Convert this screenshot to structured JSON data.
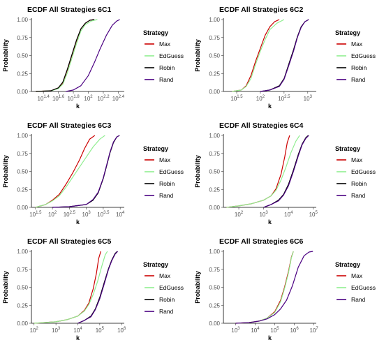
{
  "legend_title": "Strategy",
  "colors": {
    "Max": "#cc0000",
    "EdGuess": "#90ee90",
    "Robin": "#000000",
    "Rand": "#4b0082"
  },
  "chart_data": [
    {
      "type": "line",
      "title": "ECDF All Strategies 6C1",
      "xlabel": "k",
      "ylabel": "Probability",
      "x_scale": "log10",
      "xlim_log10": [
        1.24,
        2.48
      ],
      "ylim": [
        0,
        1
      ],
      "x_ticks": [
        {
          "v": 1.4,
          "label": "10",
          "exp": "1.4"
        },
        {
          "v": 1.6,
          "label": "10",
          "exp": "1.6"
        },
        {
          "v": 1.8,
          "label": "10",
          "exp": "1.8"
        },
        {
          "v": 2.0,
          "label": "10",
          "exp": "2"
        },
        {
          "v": 2.2,
          "label": "10",
          "exp": "2.2"
        },
        {
          "v": 2.4,
          "label": "10",
          "exp": "2.4"
        }
      ],
      "y_ticks": [
        "0.00",
        "0.25",
        "0.50",
        "0.75",
        "1.00"
      ],
      "legend": [
        "Max",
        "EdGuess",
        "Robin",
        "Rand"
      ],
      "series": [
        {
          "name": "Max",
          "x_log10": [
            1.3,
            1.5,
            1.6,
            1.66,
            1.72,
            1.78,
            1.84,
            1.9,
            1.96,
            2.02,
            2.08
          ],
          "y": [
            0,
            0.01,
            0.05,
            0.12,
            0.3,
            0.5,
            0.7,
            0.87,
            0.95,
            0.99,
            1.0
          ]
        },
        {
          "name": "EdGuess",
          "x_log10": [
            1.3,
            1.5,
            1.6,
            1.66,
            1.72,
            1.78,
            1.84,
            1.9,
            1.96,
            2.04,
            2.12
          ],
          "y": [
            0,
            0.01,
            0.04,
            0.1,
            0.26,
            0.46,
            0.66,
            0.84,
            0.93,
            0.98,
            1.0
          ]
        },
        {
          "name": "Robin",
          "x_log10": [
            1.3,
            1.5,
            1.6,
            1.66,
            1.72,
            1.78,
            1.84,
            1.9,
            1.96,
            2.02,
            2.08
          ],
          "y": [
            0,
            0.01,
            0.05,
            0.13,
            0.31,
            0.51,
            0.71,
            0.87,
            0.95,
            0.99,
            1.0
          ]
        },
        {
          "name": "Rand",
          "x_log10": [
            1.7,
            1.8,
            1.9,
            2.0,
            2.08,
            2.16,
            2.24,
            2.32,
            2.38,
            2.42
          ],
          "y": [
            0,
            0.02,
            0.08,
            0.22,
            0.4,
            0.6,
            0.78,
            0.92,
            0.98,
            1.0
          ]
        }
      ]
    },
    {
      "type": "line",
      "title": "ECDF All Strategies 6C2",
      "xlabel": "k",
      "ylabel": "Probability",
      "x_scale": "log10",
      "xlim_log10": [
        1.22,
        3.18
      ],
      "ylim": [
        0,
        1
      ],
      "x_ticks": [
        {
          "v": 1.5,
          "label": "10",
          "exp": "1.5"
        },
        {
          "v": 2.0,
          "label": "10",
          "exp": "2"
        },
        {
          "v": 2.5,
          "label": "10",
          "exp": "2.5"
        },
        {
          "v": 3.0,
          "label": "10",
          "exp": "3"
        }
      ],
      "y_ticks": [
        "0.00",
        "0.25",
        "0.50",
        "0.75",
        "1.00"
      ],
      "legend": [
        "Max",
        "EdGuess",
        "Robin",
        "Rand"
      ],
      "series": [
        {
          "name": "Max",
          "x_log10": [
            1.4,
            1.6,
            1.7,
            1.8,
            1.9,
            2.0,
            2.1,
            2.2,
            2.3,
            2.4
          ],
          "y": [
            0,
            0.02,
            0.08,
            0.22,
            0.42,
            0.6,
            0.78,
            0.9,
            0.97,
            1.0
          ]
        },
        {
          "name": "EdGuess",
          "x_log10": [
            1.4,
            1.6,
            1.7,
            1.8,
            1.9,
            2.0,
            2.1,
            2.2,
            2.35,
            2.5
          ],
          "y": [
            0,
            0.02,
            0.07,
            0.18,
            0.38,
            0.56,
            0.72,
            0.86,
            0.95,
            1.0
          ]
        },
        {
          "name": "Robin",
          "x_log10": [
            2.0,
            2.2,
            2.4,
            2.5,
            2.6,
            2.7,
            2.78,
            2.86,
            2.94,
            3.02
          ],
          "y": [
            0,
            0.02,
            0.08,
            0.18,
            0.38,
            0.58,
            0.76,
            0.9,
            0.97,
            1.0
          ]
        },
        {
          "name": "Rand",
          "x_log10": [
            2.0,
            2.2,
            2.4,
            2.5,
            2.6,
            2.7,
            2.78,
            2.86,
            2.94,
            3.02
          ],
          "y": [
            0,
            0.02,
            0.07,
            0.17,
            0.36,
            0.56,
            0.75,
            0.89,
            0.97,
            1.0
          ]
        }
      ]
    },
    {
      "type": "line",
      "title": "ECDF All Strategies 6C3",
      "xlabel": "k",
      "ylabel": "Probability",
      "x_scale": "log10",
      "xlim_log10": [
        1.38,
        4.12
      ],
      "ylim": [
        0,
        1
      ],
      "x_ticks": [
        {
          "v": 1.5,
          "label": "10",
          "exp": "1.5"
        },
        {
          "v": 2.0,
          "label": "10",
          "exp": "2"
        },
        {
          "v": 2.5,
          "label": "10",
          "exp": "2.5"
        },
        {
          "v": 3.0,
          "label": "10",
          "exp": "3"
        },
        {
          "v": 3.5,
          "label": "10",
          "exp": "3.5"
        },
        {
          "v": 4.0,
          "label": "10",
          "exp": "4"
        }
      ],
      "y_ticks": [
        "0.00",
        "0.25",
        "0.50",
        "0.75",
        "1.00"
      ],
      "legend": [
        "Max",
        "EdGuess",
        "Robin",
        "Rand"
      ],
      "series": [
        {
          "name": "Max",
          "x_log10": [
            1.5,
            1.8,
            2.0,
            2.2,
            2.4,
            2.6,
            2.8,
            2.95,
            3.1,
            3.25
          ],
          "y": [
            0,
            0.04,
            0.1,
            0.18,
            0.32,
            0.48,
            0.66,
            0.82,
            0.95,
            1.0
          ]
        },
        {
          "name": "EdGuess",
          "x_log10": [
            1.5,
            1.8,
            2.0,
            2.2,
            2.4,
            2.6,
            2.8,
            3.0,
            3.2,
            3.4,
            3.55
          ],
          "y": [
            0,
            0.04,
            0.09,
            0.16,
            0.28,
            0.42,
            0.56,
            0.7,
            0.84,
            0.95,
            1.0
          ]
        },
        {
          "name": "Robin",
          "x_log10": [
            2.0,
            2.5,
            3.0,
            3.2,
            3.35,
            3.5,
            3.6,
            3.7,
            3.8,
            3.9,
            3.98
          ],
          "y": [
            0,
            0.01,
            0.04,
            0.1,
            0.2,
            0.4,
            0.58,
            0.76,
            0.9,
            0.98,
            1.0
          ]
        },
        {
          "name": "Rand",
          "x_log10": [
            2.0,
            2.5,
            3.0,
            3.2,
            3.35,
            3.5,
            3.6,
            3.7,
            3.8,
            3.9,
            3.98
          ],
          "y": [
            0,
            0.01,
            0.04,
            0.11,
            0.21,
            0.41,
            0.59,
            0.77,
            0.91,
            0.98,
            1.0
          ]
        }
      ]
    },
    {
      "type": "line",
      "title": "ECDF All Strategies 6C4",
      "xlabel": "k",
      "ylabel": "Probability",
      "x_scale": "log10",
      "xlim_log10": [
        1.38,
        5.12
      ],
      "ylim": [
        0,
        1
      ],
      "x_ticks": [
        {
          "v": 2,
          "label": "10",
          "exp": "2"
        },
        {
          "v": 3,
          "label": "10",
          "exp": "3"
        },
        {
          "v": 4,
          "label": "10",
          "exp": "4"
        },
        {
          "v": 5,
          "label": "10",
          "exp": "5"
        }
      ],
      "y_ticks": [
        "0.00",
        "0.25",
        "0.50",
        "0.75",
        "1.00"
      ],
      "legend": [
        "Max",
        "EdGuess",
        "Robin",
        "Rand"
      ],
      "series": [
        {
          "name": "Max",
          "x_log10": [
            1.5,
            2.0,
            2.5,
            3.0,
            3.3,
            3.5,
            3.7,
            3.85,
            3.95,
            4.05
          ],
          "y": [
            0,
            0.02,
            0.05,
            0.1,
            0.16,
            0.26,
            0.46,
            0.7,
            0.9,
            1.0
          ]
        },
        {
          "name": "EdGuess",
          "x_log10": [
            1.5,
            2.0,
            2.5,
            3.0,
            3.3,
            3.5,
            3.7,
            3.9,
            4.1,
            4.3,
            4.45
          ],
          "y": [
            0,
            0.02,
            0.05,
            0.1,
            0.16,
            0.24,
            0.38,
            0.56,
            0.76,
            0.92,
            1.0
          ]
        },
        {
          "name": "Robin",
          "x_log10": [
            3.0,
            3.3,
            3.6,
            3.8,
            4.0,
            4.2,
            4.4,
            4.55,
            4.7,
            4.8
          ],
          "y": [
            0,
            0.04,
            0.1,
            0.18,
            0.32,
            0.52,
            0.74,
            0.88,
            0.97,
            1.0
          ]
        },
        {
          "name": "Rand",
          "x_log10": [
            3.0,
            3.3,
            3.6,
            3.8,
            4.0,
            4.2,
            4.4,
            4.55,
            4.7,
            4.82
          ],
          "y": [
            0,
            0.04,
            0.09,
            0.17,
            0.3,
            0.5,
            0.72,
            0.87,
            0.96,
            1.0
          ]
        }
      ]
    },
    {
      "type": "line",
      "title": "ECDF All Strategies 6C5",
      "xlabel": "k",
      "ylabel": "Probability",
      "x_scale": "log10",
      "xlim_log10": [
        1.88,
        6.12
      ],
      "ylim": [
        0,
        1
      ],
      "x_ticks": [
        {
          "v": 2,
          "label": "10",
          "exp": "2"
        },
        {
          "v": 3,
          "label": "10",
          "exp": "3"
        },
        {
          "v": 4,
          "label": "10",
          "exp": "4"
        },
        {
          "v": 5,
          "label": "10",
          "exp": "5"
        },
        {
          "v": 6,
          "label": "10",
          "exp": "6"
        }
      ],
      "y_ticks": [
        "0.00",
        "0.25",
        "0.50",
        "0.75",
        "1.00"
      ],
      "legend": [
        "Max",
        "EdGuess",
        "Robin",
        "Rand"
      ],
      "series": [
        {
          "name": "Max",
          "x_log10": [
            2.0,
            3.0,
            3.5,
            4.0,
            4.3,
            4.5,
            4.7,
            4.85,
            4.95,
            5.05
          ],
          "y": [
            0,
            0.02,
            0.05,
            0.1,
            0.18,
            0.28,
            0.48,
            0.7,
            0.9,
            1.0
          ]
        },
        {
          "name": "EdGuess",
          "x_log10": [
            2.0,
            3.0,
            3.5,
            4.0,
            4.3,
            4.5,
            4.7,
            4.9,
            5.1,
            5.25,
            5.35
          ],
          "y": [
            0,
            0.02,
            0.05,
            0.1,
            0.17,
            0.26,
            0.4,
            0.58,
            0.8,
            0.95,
            1.0
          ]
        },
        {
          "name": "Robin",
          "x_log10": [
            4.0,
            4.3,
            4.6,
            4.8,
            5.0,
            5.2,
            5.4,
            5.55,
            5.7,
            5.8
          ],
          "y": [
            0,
            0.04,
            0.1,
            0.2,
            0.36,
            0.56,
            0.76,
            0.88,
            0.97,
            1.0
          ]
        },
        {
          "name": "Rand",
          "x_log10": [
            4.0,
            4.3,
            4.6,
            4.8,
            5.0,
            5.2,
            5.4,
            5.55,
            5.7,
            5.82
          ],
          "y": [
            0,
            0.04,
            0.09,
            0.19,
            0.34,
            0.54,
            0.75,
            0.87,
            0.96,
            1.0
          ]
        }
      ]
    },
    {
      "type": "line",
      "title": "ECDF All Strategies 6C6",
      "xlabel": "k",
      "ylabel": "Probability",
      "x_scale": "log10",
      "xlim_log10": [
        2.38,
        7.12
      ],
      "ylim": [
        0,
        1
      ],
      "x_ticks": [
        {
          "v": 3,
          "label": "10",
          "exp": "3"
        },
        {
          "v": 4,
          "label": "10",
          "exp": "4"
        },
        {
          "v": 5,
          "label": "10",
          "exp": "5"
        },
        {
          "v": 6,
          "label": "10",
          "exp": "6"
        },
        {
          "v": 7,
          "label": "10",
          "exp": "7"
        }
      ],
      "y_ticks": [
        "0.00",
        "0.25",
        "0.50",
        "0.75",
        "1.00"
      ],
      "legend": [
        "Max",
        "EdGuess",
        "Rand"
      ],
      "series": [
        {
          "name": "Max",
          "x_log10": [
            3.0,
            3.7,
            4.2,
            4.6,
            5.0,
            5.3,
            5.5,
            5.7,
            5.85,
            5.95
          ],
          "y": [
            0,
            0.01,
            0.03,
            0.07,
            0.16,
            0.32,
            0.5,
            0.72,
            0.92,
            1.0
          ]
        },
        {
          "name": "EdGuess",
          "x_log10": [
            3.0,
            3.7,
            4.2,
            4.6,
            5.0,
            5.3,
            5.5,
            5.7,
            5.85,
            5.95
          ],
          "y": [
            0,
            0.01,
            0.03,
            0.07,
            0.15,
            0.3,
            0.48,
            0.7,
            0.91,
            1.0
          ]
        },
        {
          "name": "Rand",
          "x_log10": [
            3.0,
            3.7,
            4.2,
            4.6,
            5.0,
            5.3,
            5.6,
            5.9,
            6.2,
            6.5,
            6.75,
            6.95
          ],
          "y": [
            0,
            0.01,
            0.03,
            0.06,
            0.12,
            0.2,
            0.32,
            0.52,
            0.78,
            0.94,
            0.99,
            1.0
          ]
        }
      ]
    }
  ]
}
